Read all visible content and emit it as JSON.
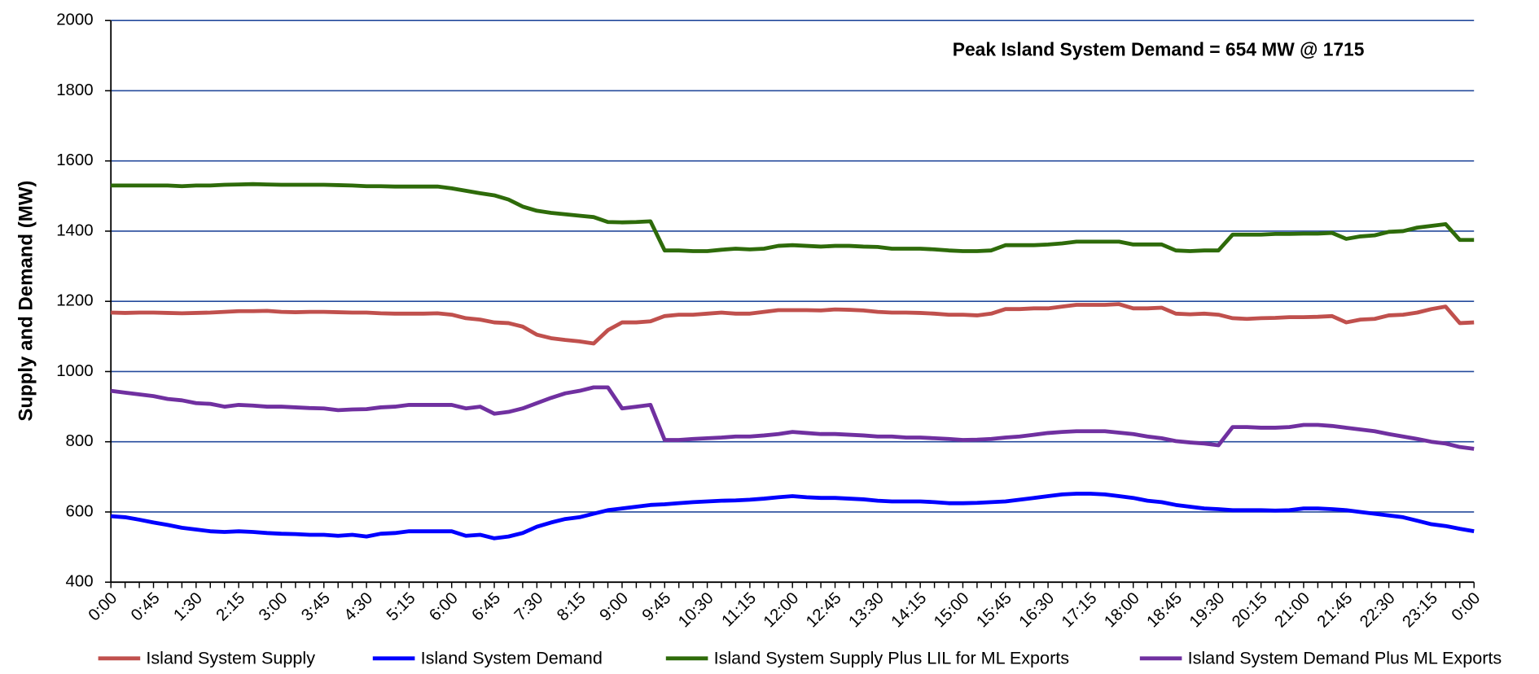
{
  "chart_data": {
    "type": "line",
    "annotation": "Peak Island System Demand = 654 MW @ 1715",
    "y_label": "Supply and Demand (MW)",
    "categories": [
      "0:00",
      null,
      null,
      "0:45",
      null,
      null,
      "1:30",
      null,
      null,
      "2:15",
      null,
      null,
      "3:00",
      null,
      null,
      "3:45",
      null,
      null,
      "4:30",
      null,
      null,
      "5:15",
      null,
      null,
      "6:00",
      null,
      null,
      "6:45",
      null,
      null,
      "7:30",
      null,
      null,
      "8:15",
      null,
      null,
      "9:00",
      null,
      null,
      "9:45",
      null,
      null,
      "10:30",
      null,
      null,
      "11:15",
      null,
      null,
      "12:00",
      null,
      null,
      "12:45",
      null,
      null,
      "13:30",
      null,
      null,
      "14:15",
      null,
      null,
      "15:00",
      null,
      null,
      "15:45",
      null,
      null,
      "16:30",
      null,
      null,
      "17:15",
      null,
      null,
      "18:00",
      null,
      null,
      "18:45",
      null,
      null,
      "19:30",
      null,
      null,
      "20:15",
      null,
      null,
      "21:00",
      null,
      null,
      "21:45",
      null,
      null,
      "22:30",
      null,
      null,
      "23:15",
      null,
      null,
      "0:00"
    ],
    "series": [
      {
        "name": "Island System Supply",
        "color": "#c0504d",
        "values": [
          1168,
          1167,
          1168,
          1168,
          1167,
          1166,
          1167,
          1168,
          1170,
          1172,
          1172,
          1173,
          1170,
          1169,
          1170,
          1170,
          1169,
          1168,
          1168,
          1166,
          1165,
          1165,
          1165,
          1166,
          1162,
          1152,
          1148,
          1140,
          1138,
          1128,
          1105,
          1095,
          1090,
          1086,
          1080,
          1118,
          1140,
          1140,
          1143,
          1158,
          1162,
          1162,
          1165,
          1168,
          1165,
          1165,
          1170,
          1175,
          1175,
          1175,
          1174,
          1177,
          1176,
          1174,
          1170,
          1168,
          1168,
          1167,
          1165,
          1162,
          1162,
          1160,
          1165,
          1178,
          1178,
          1180,
          1180,
          1185,
          1190,
          1190,
          1190,
          1192,
          1180,
          1180,
          1182,
          1165,
          1163,
          1165,
          1162,
          1152,
          1150,
          1152,
          1153,
          1155,
          1155,
          1156,
          1158,
          1140,
          1148,
          1150,
          1160,
          1162,
          1168,
          1178,
          1185,
          1138,
          1140
        ]
      },
      {
        "name": "Island System Demand",
        "color": "#0000ff",
        "values": [
          588,
          585,
          578,
          570,
          563,
          555,
          550,
          545,
          543,
          545,
          543,
          540,
          538,
          537,
          535,
          535,
          532,
          535,
          530,
          538,
          540,
          545,
          545,
          545,
          545,
          532,
          535,
          525,
          530,
          540,
          558,
          570,
          580,
          585,
          595,
          605,
          610,
          615,
          620,
          622,
          625,
          628,
          630,
          632,
          633,
          635,
          638,
          642,
          645,
          642,
          640,
          640,
          638,
          636,
          632,
          630,
          630,
          630,
          628,
          625,
          625,
          626,
          628,
          630,
          635,
          640,
          645,
          650,
          652,
          652,
          650,
          645,
          640,
          632,
          628,
          620,
          615,
          610,
          608,
          605,
          605,
          605,
          604,
          605,
          610,
          610,
          608,
          605,
          600,
          595,
          590,
          585,
          575,
          565,
          560,
          552,
          545
        ]
      },
      {
        "name": "Island System Supply Plus LIL for ML Exports",
        "color": "#2e6b0a",
        "values": [
          1530,
          1530,
          1530,
          1530,
          1530,
          1528,
          1530,
          1530,
          1532,
          1533,
          1534,
          1533,
          1532,
          1532,
          1532,
          1532,
          1531,
          1530,
          1528,
          1528,
          1527,
          1527,
          1527,
          1527,
          1522,
          1515,
          1508,
          1502,
          1490,
          1470,
          1458,
          1452,
          1448,
          1444,
          1440,
          1426,
          1425,
          1426,
          1428,
          1345,
          1345,
          1343,
          1343,
          1347,
          1350,
          1348,
          1350,
          1358,
          1360,
          1358,
          1356,
          1358,
          1358,
          1356,
          1355,
          1350,
          1350,
          1350,
          1348,
          1345,
          1343,
          1343,
          1345,
          1360,
          1360,
          1360,
          1362,
          1365,
          1370,
          1370,
          1370,
          1370,
          1362,
          1362,
          1362,
          1345,
          1343,
          1345,
          1345,
          1390,
          1390,
          1390,
          1392,
          1392,
          1393,
          1393,
          1395,
          1378,
          1385,
          1388,
          1398,
          1400,
          1410,
          1415,
          1420,
          1375,
          1375
        ]
      },
      {
        "name": "Island System Demand Plus ML Exports",
        "color": "#7030a0",
        "values": [
          945,
          940,
          935,
          930,
          922,
          918,
          910,
          908,
          900,
          905,
          903,
          900,
          900,
          898,
          896,
          895,
          890,
          892,
          893,
          898,
          900,
          905,
          905,
          905,
          905,
          895,
          900,
          880,
          885,
          895,
          910,
          925,
          938,
          945,
          955,
          955,
          895,
          900,
          905,
          805,
          805,
          808,
          810,
          812,
          815,
          815,
          818,
          822,
          828,
          825,
          822,
          822,
          820,
          818,
          815,
          815,
          812,
          812,
          810,
          808,
          805,
          806,
          808,
          812,
          815,
          820,
          825,
          828,
          830,
          830,
          830,
          826,
          822,
          815,
          810,
          802,
          798,
          795,
          790,
          842,
          842,
          840,
          840,
          842,
          848,
          848,
          845,
          840,
          835,
          830,
          822,
          815,
          808,
          800,
          795,
          785,
          780
        ]
      }
    ],
    "ylim": [
      400,
      2000
    ],
    "yticks": [
      400,
      600,
      800,
      1000,
      1200,
      1400,
      1600,
      1800,
      2000
    ],
    "grid": true,
    "legend": "bottom"
  }
}
